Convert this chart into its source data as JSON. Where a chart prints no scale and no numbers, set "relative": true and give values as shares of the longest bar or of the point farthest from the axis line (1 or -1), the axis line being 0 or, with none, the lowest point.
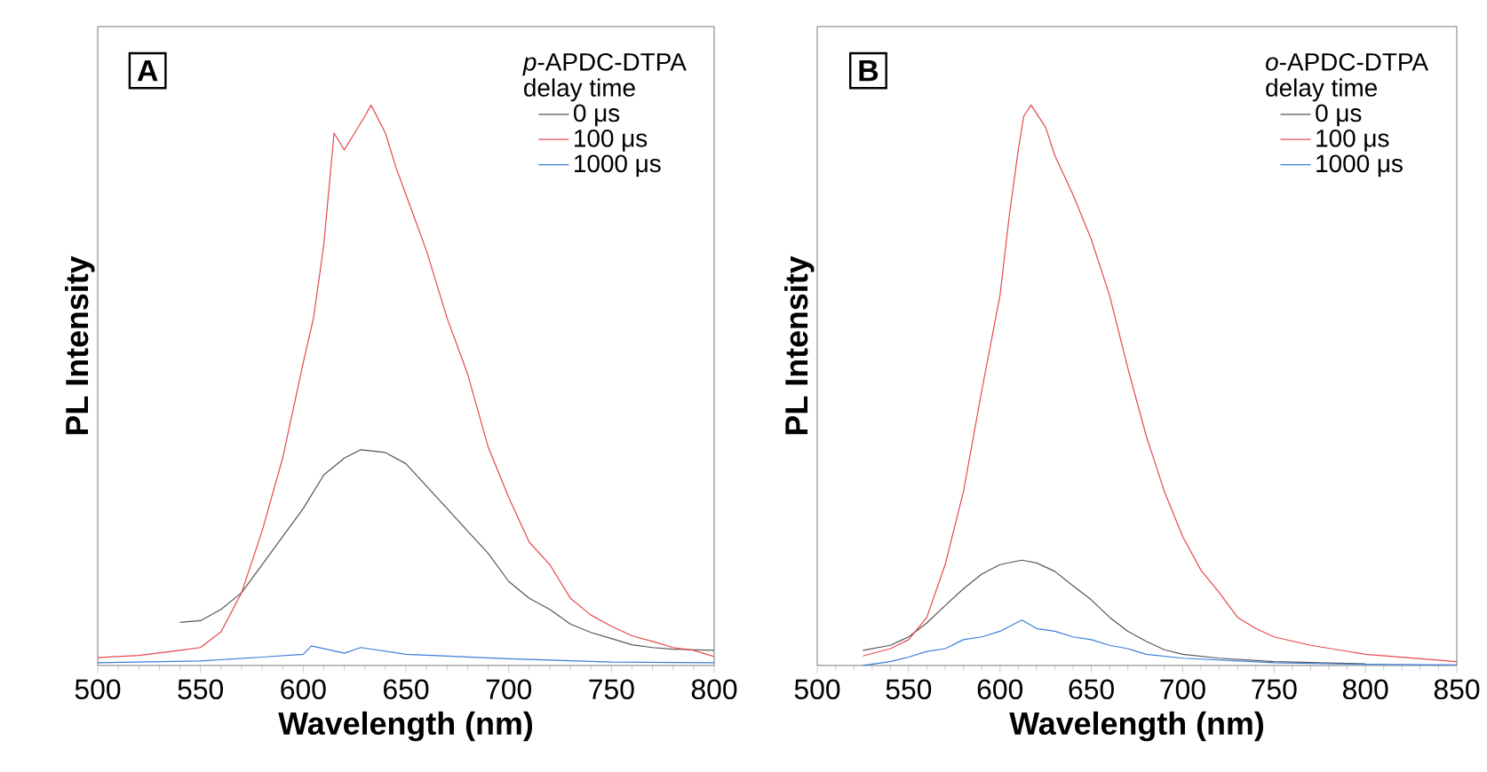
{
  "chart_data": [
    {
      "type": "line",
      "title": "A",
      "legend_title": "*p*-APDC-DTPA",
      "annotations": [
        "delay time"
      ],
      "xlabel": "Wavelength (nm)",
      "ylabel": "PL Intensity",
      "relative": true,
      "xlim": [
        500,
        800
      ],
      "xticks": [
        500,
        550,
        600,
        650,
        700,
        750,
        800
      ],
      "legend": "top right",
      "grid": false,
      "series": [
        {
          "name": "0 μs",
          "color": "#555555",
          "x": [
            540,
            550,
            560,
            570,
            580,
            590,
            600,
            610,
            620,
            628,
            640,
            650,
            660,
            670,
            680,
            690,
            700,
            710,
            720,
            730,
            740,
            750,
            760,
            770,
            780,
            800
          ],
          "values": [
            0.077,
            0.08,
            0.1,
            0.13,
            0.18,
            0.23,
            0.28,
            0.34,
            0.37,
            0.385,
            0.38,
            0.36,
            0.32,
            0.28,
            0.24,
            0.2,
            0.15,
            0.12,
            0.1,
            0.074,
            0.059,
            0.048,
            0.037,
            0.032,
            0.029,
            0.027
          ]
        },
        {
          "name": "100 μs",
          "color": "#e8474b",
          "x": [
            500,
            520,
            540,
            550,
            560,
            570,
            580,
            590,
            600,
            605,
            610,
            615,
            620,
            625,
            630,
            633,
            640,
            645,
            650,
            660,
            670,
            680,
            690,
            700,
            710,
            720,
            730,
            740,
            750,
            760,
            770,
            780,
            790,
            800
          ],
          "values": [
            0.014,
            0.018,
            0.027,
            0.032,
            0.06,
            0.13,
            0.24,
            0.37,
            0.54,
            0.62,
            0.75,
            0.95,
            0.92,
            0.95,
            0.98,
            1.0,
            0.95,
            0.89,
            0.84,
            0.74,
            0.62,
            0.52,
            0.39,
            0.3,
            0.22,
            0.18,
            0.12,
            0.09,
            0.07,
            0.053,
            0.043,
            0.032,
            0.027,
            0.016
          ]
        },
        {
          "name": "1000 μs",
          "color": "#3b7dd8",
          "x": [
            500,
            550,
            580,
            600,
            604,
            620,
            628,
            650,
            700,
            750,
            800
          ],
          "values": [
            0.005,
            0.008,
            0.015,
            0.02,
            0.035,
            0.022,
            0.032,
            0.02,
            0.012,
            0.006,
            0.005
          ]
        }
      ]
    },
    {
      "type": "line",
      "title": "B",
      "legend_title": "*o*-APDC-DTPA",
      "annotations": [
        "delay time"
      ],
      "xlabel": "Wavelength (nm)",
      "ylabel": "PL Intensity",
      "relative": true,
      "xlim": [
        500,
        850
      ],
      "xticks": [
        500,
        550,
        600,
        650,
        700,
        750,
        800,
        850
      ],
      "legend": "top right",
      "grid": false,
      "series": [
        {
          "name": "0 μs",
          "color": "#555555",
          "x": [
            525,
            540,
            550,
            560,
            570,
            580,
            590,
            600,
            612,
            620,
            630,
            640,
            650,
            660,
            670,
            680,
            690,
            700,
            720,
            750,
            800
          ],
          "values": [
            0.027,
            0.036,
            0.051,
            0.076,
            0.107,
            0.137,
            0.163,
            0.18,
            0.188,
            0.183,
            0.168,
            0.142,
            0.117,
            0.086,
            0.061,
            0.043,
            0.028,
            0.02,
            0.013,
            0.007,
            0.003
          ]
        },
        {
          "name": "100 μs",
          "color": "#e8474b",
          "x": [
            525,
            540,
            550,
            560,
            570,
            580,
            590,
            600,
            605,
            610,
            613,
            617,
            625,
            630,
            640,
            650,
            660,
            670,
            680,
            690,
            700,
            710,
            720,
            730,
            740,
            750,
            770,
            800,
            850
          ],
          "values": [
            0.017,
            0.03,
            0.046,
            0.086,
            0.18,
            0.31,
            0.49,
            0.66,
            0.8,
            0.92,
            0.98,
            1.0,
            0.96,
            0.91,
            0.84,
            0.76,
            0.66,
            0.53,
            0.41,
            0.31,
            0.23,
            0.17,
            0.13,
            0.086,
            0.066,
            0.051,
            0.036,
            0.02,
            0.007
          ]
        },
        {
          "name": "1000 μs",
          "color": "#3b7dd8",
          "x": [
            525,
            540,
            550,
            560,
            570,
            580,
            590,
            600,
            612,
            620,
            630,
            640,
            650,
            660,
            670,
            680,
            700,
            750,
            800,
            850
          ],
          "values": [
            0.0,
            0.007,
            0.015,
            0.025,
            0.03,
            0.046,
            0.051,
            0.061,
            0.081,
            0.066,
            0.061,
            0.051,
            0.046,
            0.036,
            0.03,
            0.02,
            0.013,
            0.005,
            0.002,
            0.001
          ]
        }
      ]
    }
  ]
}
